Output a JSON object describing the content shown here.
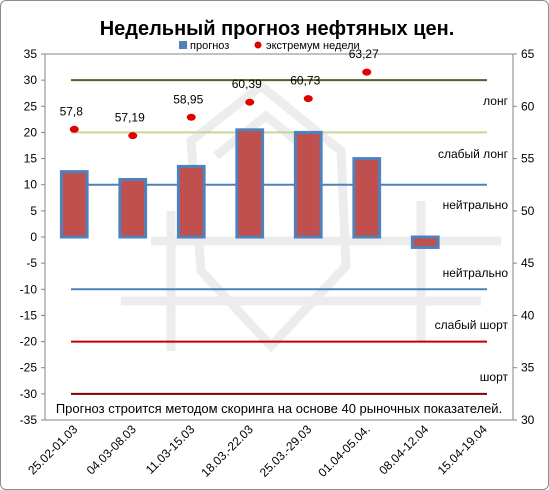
{
  "chart_data": {
    "type": "bar",
    "title": "Недельный прогноз нефтяных цен.",
    "categories": [
      "25.02-01.03",
      "04.03-08.03",
      "11.03-15.03",
      "18.03.-22.03",
      "25.03.-29.03",
      "01.04-05.04.",
      "08.04-12.04",
      "15.04-19.04"
    ],
    "left_axis": {
      "ylim": [
        -35,
        35
      ],
      "ticks": [
        "35",
        "30",
        "25",
        "20",
        "15",
        "10",
        "5",
        "0",
        "-5",
        "-10",
        "-15",
        "-20",
        "-25",
        "-30",
        "-35"
      ]
    },
    "right_axis": {
      "ylim": [
        30,
        65
      ],
      "ticks": [
        "65",
        "60",
        "55",
        "50",
        "45",
        "40",
        "35",
        "30"
      ]
    },
    "series": [
      {
        "name": "прогноз",
        "axis": "left",
        "type": "bar",
        "color": "#c0504d",
        "border": "#4f81bd",
        "values": [
          12.5,
          11,
          13.5,
          20.5,
          20,
          15,
          -2,
          null
        ]
      },
      {
        "name": "экстремум недели",
        "axis": "right",
        "type": "marker",
        "color": "#e00000",
        "values": [
          57.8,
          57.19,
          58.95,
          60.39,
          60.73,
          63.27,
          null,
          null
        ],
        "labels": [
          "57,8",
          "57,19",
          "58,95",
          "60,39",
          "60,73",
          "63,27",
          "",
          ""
        ]
      }
    ],
    "reference_lines": [
      {
        "value": 30,
        "color": "#4f6228",
        "label": "лонг"
      },
      {
        "value": 20,
        "color": "#c3d69b",
        "label": "слабый лонг"
      },
      {
        "value": 10,
        "color": "#4f81bd",
        "label": "нейтрально"
      },
      {
        "value": -10,
        "color": "#4f81bd",
        "label": "нейтрально"
      },
      {
        "value": -20,
        "color": "#c00000",
        "label": "слабый шорт"
      },
      {
        "value": -30,
        "color": "#800000",
        "label": "шорт"
      }
    ],
    "grid": false,
    "legend_position": "top"
  },
  "footnote": "Прогноз строится методом скоринга на основе  40 рыночных показателей."
}
